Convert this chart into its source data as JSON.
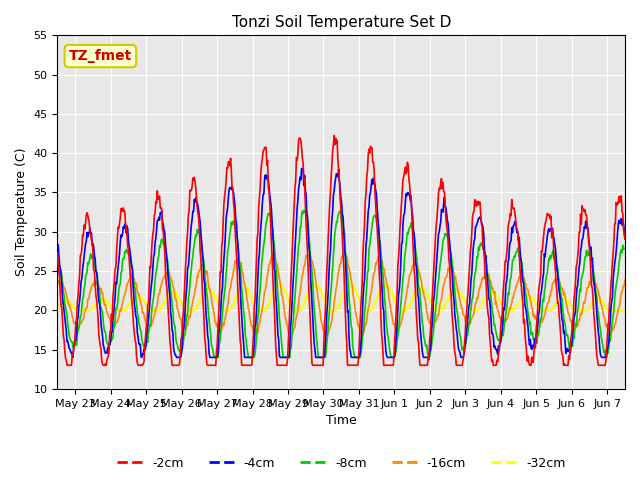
{
  "title": "Tonzi Soil Temperature Set D",
  "xlabel": "Time",
  "ylabel": "Soil Temperature (C)",
  "ylim": [
    10,
    55
  ],
  "yticks": [
    10,
    15,
    20,
    25,
    30,
    35,
    40,
    45,
    50,
    55
  ],
  "annotation_text": "TZ_fmet",
  "annotation_color": "#cc0000",
  "annotation_bg": "#ffffcc",
  "annotation_border": "#cccc00",
  "series_colors": {
    "-2cm": "#ff0000",
    "-4cm": "#0000ff",
    "-8cm": "#00cc00",
    "-16cm": "#ff8800",
    "-32cm": "#ffff00"
  },
  "legend_labels": [
    "-2cm",
    "-4cm",
    "-8cm",
    "-16cm",
    "-32cm"
  ],
  "x_tick_labels": [
    "May 23",
    "May 24",
    "May 25",
    "May 26",
    "May 27",
    "May 28",
    "May 29",
    "May 30",
    "May 31",
    "Jun 1",
    "Jun 2",
    "Jun 3",
    "Jun 4",
    "Jun 5",
    "Jun 6",
    "Jun 7"
  ],
  "n_days": 16,
  "plot_bg": "#e8e8e8"
}
